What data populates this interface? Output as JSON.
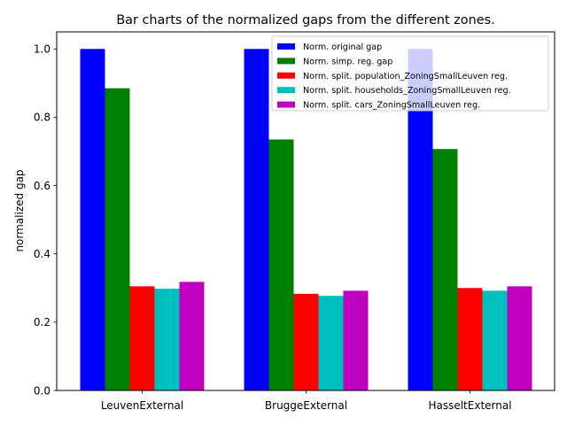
{
  "chart_data": {
    "type": "bar",
    "title": "Bar charts of the normalized gaps from the different zones.",
    "xlabel": "",
    "ylabel": "normalized gap",
    "categories": [
      "LeuvenExternal",
      "BruggeExternal",
      "HasseltExternal"
    ],
    "series": [
      {
        "name": "Norm. original gap",
        "color": "#0000ff",
        "values": [
          1.0,
          1.0,
          1.0
        ]
      },
      {
        "name": "Norm. simp. reg. gap",
        "color": "#008000",
        "values": [
          0.885,
          0.735,
          0.707
        ]
      },
      {
        "name": "Norm. split. population_ZoningSmallLeuven reg.",
        "color": "#ff0000",
        "values": [
          0.305,
          0.283,
          0.3
        ]
      },
      {
        "name": "Norm. split. households_ZoningSmallLeuven reg.",
        "color": "#00bfbf",
        "values": [
          0.298,
          0.277,
          0.292
        ]
      },
      {
        "name": "Norm. split. cars_ZoningSmallLeuven reg.",
        "color": "#bf00bf",
        "values": [
          0.318,
          0.292,
          0.305
        ]
      }
    ],
    "ylim": [
      0,
      1.05
    ],
    "yticks": [
      "0.0",
      "0.2",
      "0.4",
      "0.6",
      "0.8",
      "1.0"
    ],
    "grid": false,
    "legend_position": "top-right"
  }
}
